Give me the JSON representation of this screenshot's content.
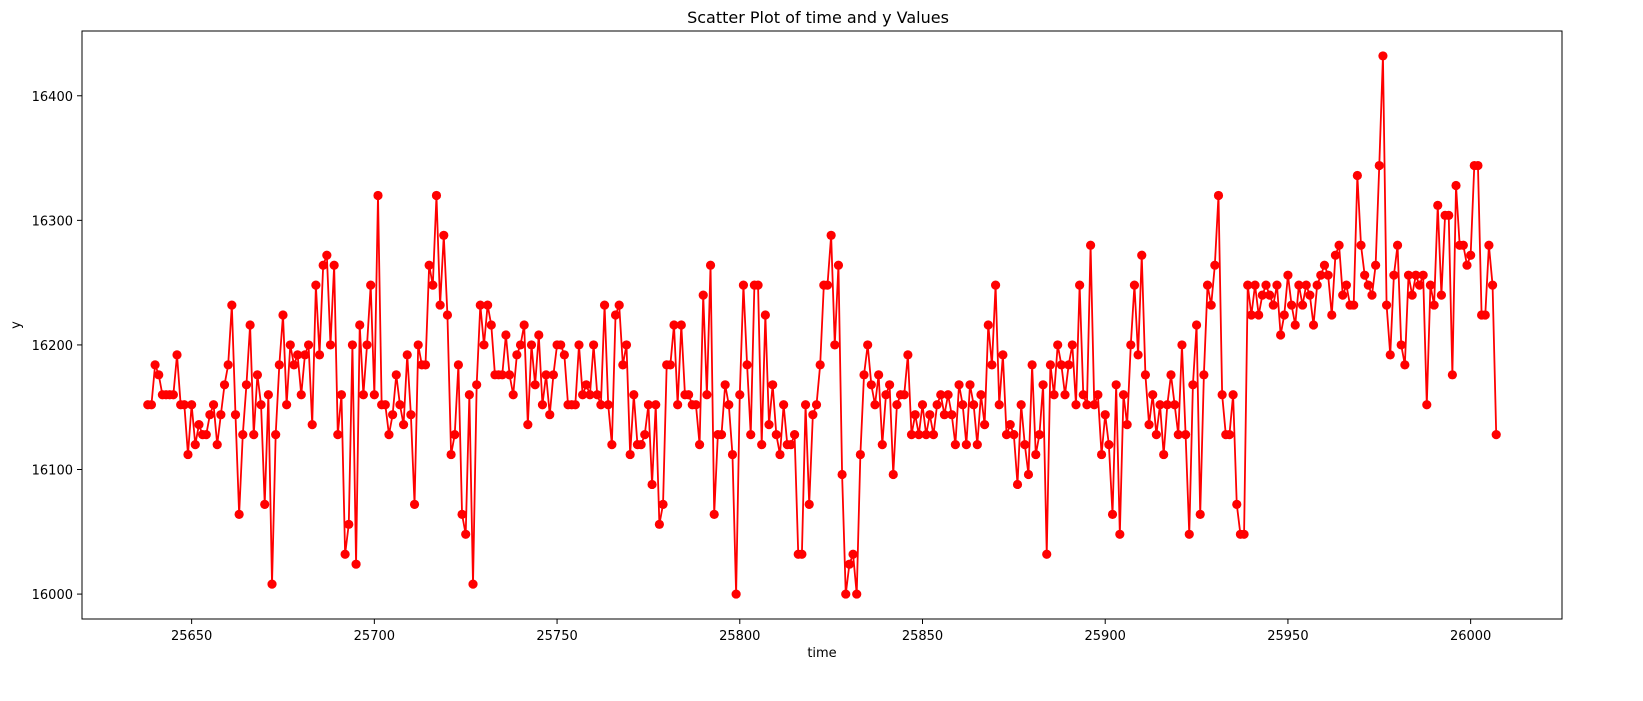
{
  "chart_data": {
    "type": "line",
    "title": "Scatter Plot of time and y Values",
    "xlabel": "time",
    "ylabel": "y",
    "xlim": [
      25620,
      26025
    ],
    "ylim": [
      15980,
      16452
    ],
    "xticks": [
      25650,
      25700,
      25750,
      25800,
      25850,
      25900,
      25950,
      26000
    ],
    "yticks": [
      16000,
      16100,
      16200,
      16300,
      16400
    ],
    "grid": false,
    "legend": "none",
    "series": [
      {
        "color": "#ff0000",
        "marker": "circle",
        "x": [
          25638,
          25639,
          25640,
          25641,
          25642,
          25643,
          25644,
          25645,
          25646,
          25647,
          25648,
          25649,
          25650,
          25651,
          25652,
          25653,
          25654,
          25655,
          25656,
          25657,
          25658,
          25659,
          25660,
          25661,
          25662,
          25663,
          25664,
          25665,
          25666,
          25667,
          25668,
          25669,
          25670,
          25671,
          25672,
          25673,
          25674,
          25675,
          25676,
          25677,
          25678,
          25679,
          25680,
          25681,
          25682,
          25683,
          25684,
          25685,
          25686,
          25687,
          25688,
          25689,
          25690,
          25691,
          25692,
          25693,
          25694,
          25695,
          25696,
          25697,
          25698,
          25699,
          25700,
          25701,
          25702,
          25703,
          25704,
          25705,
          25706,
          25707,
          25708,
          25709,
          25710,
          25711,
          25712,
          25713,
          25714,
          25715,
          25716,
          25717,
          25718,
          25719,
          25720,
          25721,
          25722,
          25723,
          25724,
          25725,
          25726,
          25727,
          25728,
          25729,
          25730,
          25731,
          25732,
          25733,
          25734,
          25735,
          25736,
          25737,
          25738,
          25739,
          25740,
          25741,
          25742,
          25743,
          25744,
          25745,
          25746,
          25747,
          25748,
          25749,
          25750,
          25751,
          25752,
          25753,
          25754,
          25755,
          25756,
          25757,
          25758,
          25759,
          25760,
          25761,
          25762,
          25763,
          25764,
          25765,
          25766,
          25767,
          25768,
          25769,
          25770,
          25771,
          25772,
          25773,
          25774,
          25775,
          25776,
          25777,
          25778,
          25779,
          25780,
          25781,
          25782,
          25783,
          25784,
          25785,
          25786,
          25787,
          25788,
          25789,
          25790,
          25791,
          25792,
          25793,
          25794,
          25795,
          25796,
          25797,
          25798,
          25799,
          25800,
          25801,
          25802,
          25803,
          25804,
          25805,
          25806,
          25807,
          25808,
          25809,
          25810,
          25811,
          25812,
          25813,
          25814,
          25815,
          25816,
          25817,
          25818,
          25819,
          25820,
          25821,
          25822,
          25823,
          25824,
          25825,
          25826,
          25827,
          25828,
          25829,
          25830,
          25831,
          25832,
          25833,
          25834,
          25835,
          25836,
          25837,
          25838,
          25839,
          25840,
          25841,
          25842,
          25843,
          25844,
          25845,
          25846,
          25847,
          25848,
          25849,
          25850,
          25851,
          25852,
          25853,
          25854,
          25855,
          25856,
          25857,
          25858,
          25859,
          25860,
          25861,
          25862,
          25863,
          25864,
          25865,
          25866,
          25867,
          25868,
          25869,
          25870,
          25871,
          25872,
          25873,
          25874,
          25875,
          25876,
          25877,
          25878,
          25879,
          25880,
          25881,
          25882,
          25883,
          25884,
          25885,
          25886,
          25887,
          25888,
          25889,
          25890,
          25891,
          25892,
          25893,
          25894,
          25895,
          25896,
          25897,
          25898,
          25899,
          25900,
          25901,
          25902,
          25903,
          25904,
          25905,
          25906,
          25907,
          25908,
          25909,
          25910,
          25911,
          25912,
          25913,
          25914,
          25915,
          25916,
          25917,
          25918,
          25919,
          25920,
          25921,
          25922,
          25923,
          25924,
          25925,
          25926,
          25927,
          25928,
          25929,
          25930,
          25931,
          25932,
          25933,
          25934,
          25935,
          25936,
          25937,
          25938,
          25939,
          25940,
          25941,
          25942,
          25943,
          25944,
          25945,
          25946,
          25947,
          25948,
          25949,
          25950,
          25951,
          25952,
          25953,
          25954,
          25955,
          25956,
          25957,
          25958,
          25959,
          25960,
          25961,
          25962,
          25963,
          25964,
          25965,
          25966,
          25967,
          25968,
          25969,
          25970,
          25971,
          25972,
          25973,
          25974,
          25975,
          25976,
          25977,
          25978,
          25979,
          25980,
          25981,
          25982,
          25983,
          25984,
          25985,
          25986,
          25987,
          25988,
          25989,
          25990,
          25991,
          25992,
          25993,
          25994,
          25995,
          25996,
          25997,
          25998,
          25999,
          26000,
          26001,
          26002,
          26003,
          26004,
          26005,
          26006,
          26007
        ],
        "y": [
          16152,
          16152,
          16184,
          16176,
          16160,
          16160,
          16160,
          16160,
          16192,
          16152,
          16152,
          16112,
          16152,
          16120,
          16136,
          16128,
          16128,
          16144,
          16152,
          16120,
          16144,
          16168,
          16184,
          16232,
          16144,
          16064,
          16128,
          16168,
          16216,
          16128,
          16176,
          16152,
          16072,
          16160,
          16008,
          16128,
          16184,
          16224,
          16152,
          16200,
          16184,
          16192,
          16160,
          16192,
          16200,
          16136,
          16248,
          16192,
          16264,
          16272,
          16200,
          16264,
          16128,
          16160,
          16032,
          16056,
          16200,
          16024,
          16216,
          16160,
          16200,
          16248,
          16160,
          16320,
          16152,
          16152,
          16128,
          16144,
          16176,
          16152,
          16136,
          16192,
          16144,
          16072,
          16200,
          16184,
          16184,
          16264,
          16248,
          16320,
          16232,
          16288,
          16224,
          16112,
          16128,
          16184,
          16064,
          16048,
          16160,
          16008,
          16168,
          16232,
          16200,
          16232,
          16216,
          16176,
          16176,
          16176,
          16208,
          16176,
          16160,
          16192,
          16200,
          16216,
          16136,
          16200,
          16168,
          16208,
          16152,
          16176,
          16144,
          16176,
          16200,
          16200,
          16192,
          16152,
          16152,
          16152,
          16200,
          16160,
          16168,
          16160,
          16200,
          16160,
          16152,
          16232,
          16152,
          16120,
          16224,
          16232,
          16184,
          16200,
          16112,
          16160,
          16120,
          16120,
          16128,
          16152,
          16088,
          16152,
          16056,
          16072,
          16184,
          16184,
          16216,
          16152,
          16216,
          16160,
          16160,
          16152,
          16152,
          16120,
          16240,
          16160,
          16264,
          16064,
          16128,
          16128,
          16168,
          16152,
          16112,
          16000,
          16160,
          16248,
          16184,
          16128,
          16248,
          16248,
          16120,
          16224,
          16136,
          16168,
          16128,
          16112,
          16152,
          16120,
          16120,
          16128,
          16032,
          16032,
          16152,
          16072,
          16144,
          16152,
          16184,
          16248,
          16248,
          16288,
          16200,
          16264,
          16096,
          16000,
          16024,
          16032,
          16000,
          16112,
          16176,
          16200,
          16168,
          16152,
          16176,
          16120,
          16160,
          16168,
          16096,
          16152,
          16160,
          16160,
          16192,
          16128,
          16144,
          16128,
          16152,
          16128,
          16144,
          16128,
          16152,
          16160,
          16144,
          16160,
          16144,
          16120,
          16168,
          16152,
          16120,
          16168,
          16152,
          16120,
          16160,
          16136,
          16216,
          16184,
          16248,
          16152,
          16192,
          16128,
          16136,
          16128,
          16088,
          16152,
          16120,
          16096,
          16184,
          16112,
          16128,
          16168,
          16032,
          16184,
          16160,
          16200,
          16184,
          16160,
          16184,
          16200,
          16152,
          16248,
          16160,
          16152,
          16280,
          16152,
          16160,
          16112,
          16144,
          16120,
          16064,
          16168,
          16048,
          16160,
          16136,
          16200,
          16248,
          16192,
          16272,
          16176,
          16136,
          16160,
          16128,
          16152,
          16112,
          16152,
          16176,
          16152,
          16128,
          16200,
          16128,
          16048,
          16168,
          16216,
          16064,
          16176,
          16248,
          16232,
          16264,
          16320,
          16160,
          16128,
          16128,
          16160,
          16072,
          16048,
          16048,
          16248,
          16224,
          16248,
          16224,
          16240,
          16248,
          16240,
          16232,
          16248,
          16208,
          16224,
          16256,
          16232,
          16216,
          16248,
          16232,
          16248,
          16240,
          16216,
          16248,
          16256,
          16264,
          16256,
          16224,
          16272,
          16280,
          16240,
          16248,
          16232,
          16232,
          16336,
          16280,
          16256,
          16248,
          16240,
          16264,
          16344,
          16432,
          16232,
          16192,
          16256,
          16280,
          16200,
          16184,
          16256,
          16240,
          16256,
          16248,
          16256,
          16152,
          16248,
          16232,
          16312,
          16240,
          16304,
          16304,
          16176,
          16328,
          16280,
          16280,
          16264,
          16272,
          16344,
          16344,
          16224,
          16224,
          16280,
          16248,
          16128
        ]
      }
    ]
  }
}
